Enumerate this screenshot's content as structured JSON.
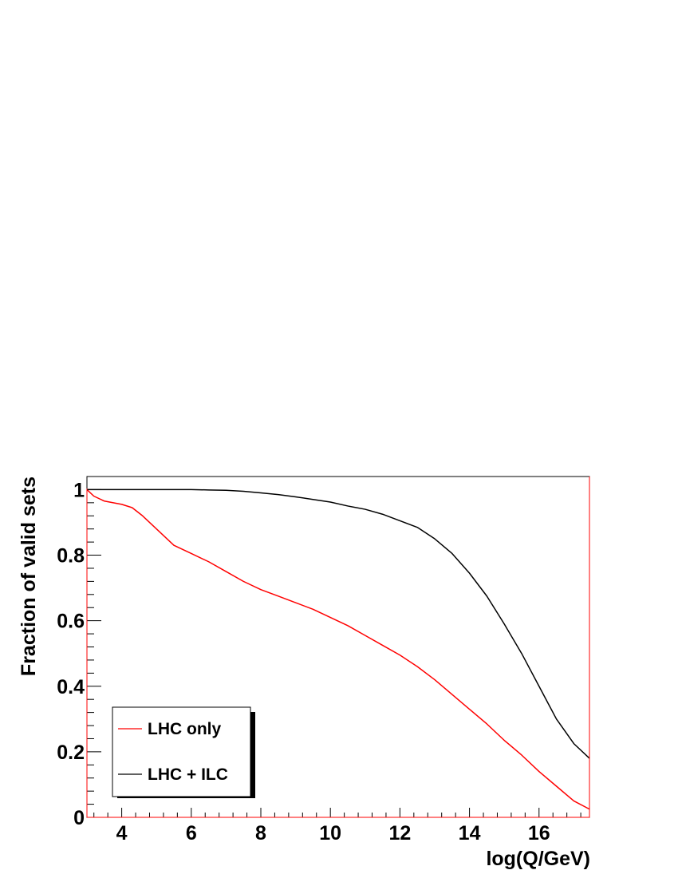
{
  "chart_data": {
    "type": "line",
    "xlabel": "log(Q/GeV)",
    "ylabel": "Fraction of valid sets",
    "xlim": [
      3,
      17.45
    ],
    "ylim": [
      0,
      1.04
    ],
    "x_ticks": [
      4,
      6,
      8,
      10,
      12,
      14,
      16
    ],
    "y_ticks": [
      0,
      0.2,
      0.4,
      0.6,
      0.8,
      1
    ],
    "x_tick_labels": [
      "4",
      "6",
      "8",
      "10",
      "12",
      "14",
      "16"
    ],
    "y_tick_labels": [
      "0",
      "0.2",
      "0.4",
      "0.6",
      "0.8",
      "1"
    ],
    "grid": false,
    "legend_position": "bottom-left",
    "series": [
      {
        "name": "LHC only",
        "color": "#ff0000",
        "x": [
          3.0,
          3.2,
          3.5,
          4.0,
          4.3,
          4.6,
          5.0,
          5.5,
          6.0,
          6.5,
          7.0,
          7.5,
          8.0,
          8.5,
          9.0,
          9.5,
          10.0,
          10.5,
          11.0,
          11.5,
          12.0,
          12.5,
          13.0,
          13.5,
          14.0,
          14.5,
          15.0,
          15.5,
          16.0,
          16.5,
          17.0,
          17.45
        ],
        "y": [
          1.0,
          0.98,
          0.965,
          0.955,
          0.945,
          0.92,
          0.88,
          0.83,
          0.805,
          0.78,
          0.75,
          0.72,
          0.695,
          0.675,
          0.655,
          0.635,
          0.61,
          0.585,
          0.555,
          0.525,
          0.495,
          0.46,
          0.42,
          0.375,
          0.33,
          0.285,
          0.235,
          0.19,
          0.14,
          0.095,
          0.05,
          0.025
        ]
      },
      {
        "name": "LHC + ILC",
        "color": "#000000",
        "x": [
          3.0,
          4.0,
          5.0,
          6.0,
          6.5,
          7.0,
          7.5,
          8.0,
          8.5,
          9.0,
          9.5,
          10.0,
          10.5,
          11.0,
          11.5,
          12.0,
          12.5,
          13.0,
          13.5,
          14.0,
          14.5,
          15.0,
          15.5,
          16.0,
          16.5,
          17.0,
          17.45
        ],
        "y": [
          1.0,
          1.0,
          1.0,
          1.0,
          0.999,
          0.998,
          0.995,
          0.99,
          0.985,
          0.978,
          0.97,
          0.962,
          0.95,
          0.94,
          0.925,
          0.905,
          0.885,
          0.85,
          0.805,
          0.745,
          0.675,
          0.59,
          0.5,
          0.4,
          0.3,
          0.225,
          0.18
        ]
      }
    ]
  }
}
